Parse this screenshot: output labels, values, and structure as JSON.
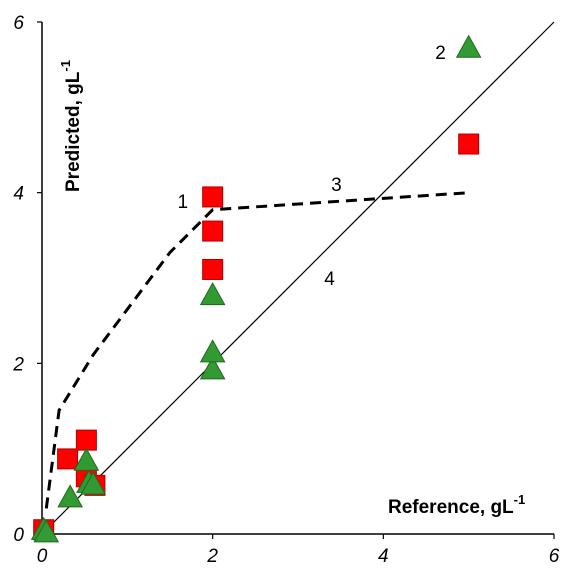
{
  "chart_data": {
    "type": "scatter",
    "xlabel": {
      "text": "Reference,  gL",
      "sup": "-1"
    },
    "ylabel": {
      "text": "Predicted,  gL",
      "sup": "-1"
    },
    "xlim": [
      0,
      6
    ],
    "ylim": [
      0,
      6
    ],
    "x_ticks": [
      "0",
      "2",
      "4",
      "6"
    ],
    "y_ticks": [
      "0",
      "2",
      "4",
      "6"
    ],
    "grid": false,
    "series": [
      {
        "marker": "square",
        "color": "#ff0000",
        "stroke": "#b00000",
        "points": [
          {
            "x": 0.02,
            "y": 0.05
          },
          {
            "x": 0.3,
            "y": 0.88
          },
          {
            "x": 0.52,
            "y": 1.1
          },
          {
            "x": 0.52,
            "y": 0.67
          },
          {
            "x": 0.62,
            "y": 0.57
          },
          {
            "x": 2.0,
            "y": 3.1
          },
          {
            "x": 2.0,
            "y": 3.55
          },
          {
            "x": 2.0,
            "y": 3.95
          },
          {
            "x": 5.0,
            "y": 4.57
          }
        ]
      },
      {
        "marker": "triangle",
        "color": "#339933",
        "stroke": "#1e6b1e",
        "points": [
          {
            "x": 0.02,
            "y": 0.05
          },
          {
            "x": 0.05,
            "y": 0.02
          },
          {
            "x": 0.33,
            "y": 0.43
          },
          {
            "x": 0.52,
            "y": 0.86
          },
          {
            "x": 0.55,
            "y": 0.6
          },
          {
            "x": 0.6,
            "y": 0.58
          },
          {
            "x": 2.0,
            "y": 1.93
          },
          {
            "x": 2.0,
            "y": 2.13
          },
          {
            "x": 2.0,
            "y": 2.8
          },
          {
            "x": 5.0,
            "y": 5.7
          }
        ]
      }
    ],
    "lines": [
      {
        "style": "dashed",
        "points": [
          [
            0.05,
            0.3
          ],
          [
            0.2,
            1.45
          ],
          [
            0.6,
            2.1
          ],
          [
            1.5,
            3.3
          ],
          [
            2.0,
            3.8
          ],
          [
            5.0,
            4.0
          ]
        ]
      },
      {
        "style": "solid",
        "points": [
          [
            0,
            0
          ],
          [
            6,
            6
          ]
        ]
      }
    ],
    "annotations": [
      {
        "text": "1",
        "x": 1.65,
        "y": 3.9
      },
      {
        "text": "2",
        "x": 4.67,
        "y": 5.65
      },
      {
        "text": "3",
        "x": 3.45,
        "y": 4.1
      },
      {
        "text": "4",
        "x": 3.37,
        "y": 3.0
      }
    ]
  }
}
